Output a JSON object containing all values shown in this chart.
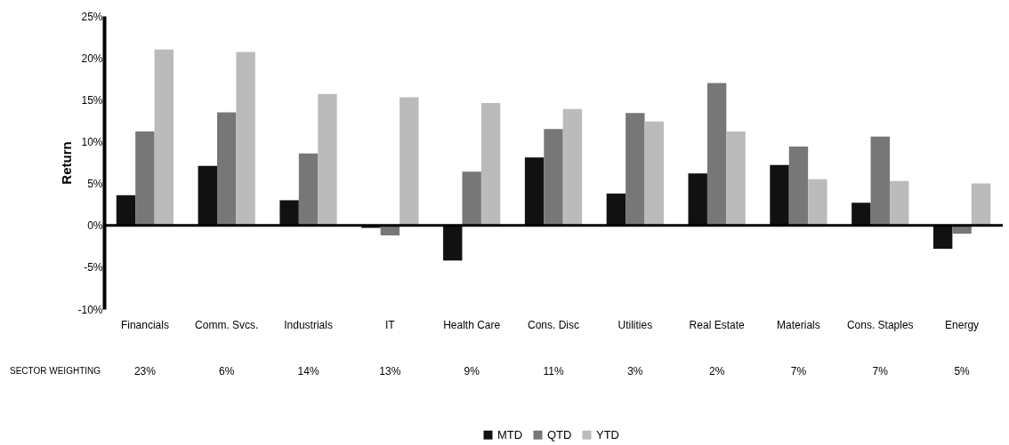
{
  "chart_data": {
    "type": "bar",
    "ylabel": "Return",
    "categories": [
      "Financials",
      "Comm. Svcs.",
      "Industrials",
      "IT",
      "Health Care",
      "Cons. Disc",
      "Utilities",
      "Real Estate",
      "Materials",
      "Cons. Staples",
      "Energy"
    ],
    "series": [
      {
        "name": "MTD",
        "color": "#111111",
        "values": [
          3.6,
          7.1,
          3.0,
          -0.3,
          -4.2,
          8.1,
          3.8,
          6.2,
          7.2,
          2.7,
          -2.8
        ]
      },
      {
        "name": "QTD",
        "color": "#777777",
        "values": [
          11.2,
          13.5,
          8.6,
          -1.2,
          6.4,
          11.5,
          13.4,
          17.0,
          9.4,
          10.6,
          -1.0
        ]
      },
      {
        "name": "YTD",
        "color": "#bbbbbb",
        "values": [
          21.0,
          20.7,
          15.7,
          15.3,
          14.6,
          13.9,
          12.4,
          11.2,
          5.5,
          5.3,
          5.0
        ]
      }
    ],
    "ylim": [
      -10,
      25
    ],
    "yticks": [
      {
        "value": -10,
        "label": "-10%"
      },
      {
        "value": -5,
        "label": "-5%"
      },
      {
        "value": 0,
        "label": "0%"
      },
      {
        "value": 5,
        "label": "5%"
      },
      {
        "value": 10,
        "label": "10%"
      },
      {
        "value": 15,
        "label": "15%"
      },
      {
        "value": 20,
        "label": "20%"
      },
      {
        "value": 25,
        "label": "25%"
      }
    ],
    "ref_lines": [
      {
        "axis": "y",
        "value": 0,
        "color": "#000000"
      }
    ],
    "annotations": [
      "SECTOR WEIGHTING",
      "23%",
      "6%",
      "14%",
      "13%",
      "9%",
      "11%",
      "3%",
      "2%",
      "7%",
      "7%",
      "5%"
    ],
    "grid": false,
    "legend": "bottom"
  }
}
